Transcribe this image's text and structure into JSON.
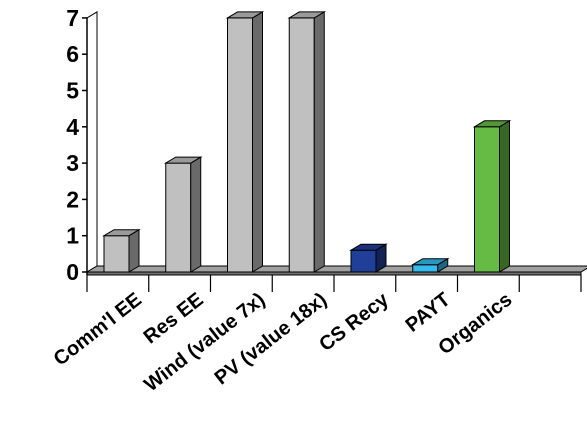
{
  "chart_data": {
    "type": "bar",
    "style": "3d-column",
    "categories": [
      "Comm'l EE",
      "Res EE",
      "Wind (value 7x)",
      "PV (value 18x)",
      "CS Recy",
      "PAYT",
      "Organics",
      ""
    ],
    "values": [
      1,
      3,
      7,
      7,
      0.6,
      0.2,
      4,
      null
    ],
    "bar_colors": [
      "#c0c0c0",
      "#c0c0c0",
      "#c0c0c0",
      "#c0c0c0",
      "#1f3f99",
      "#33bbee",
      "#66bb44",
      null
    ],
    "y_ticks": [
      "0",
      "1",
      "2",
      "3",
      "4",
      "5",
      "6",
      "7"
    ],
    "ylim": [
      0,
      7
    ],
    "grid": false,
    "legend": "none",
    "title": "",
    "xlabel": "",
    "ylabel": ""
  }
}
